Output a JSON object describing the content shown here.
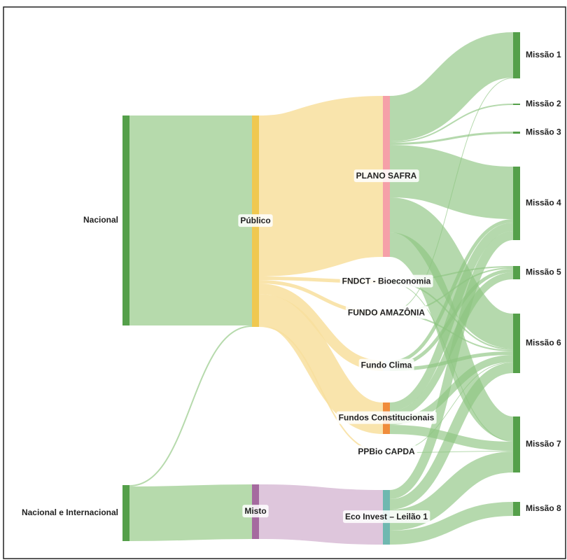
{
  "chart_data": {
    "type": "sankey",
    "nodes": [
      {
        "label": "Nacional",
        "color": "#55a04a",
        "link_color": "#a9d39e"
      },
      {
        "label": "Nacional e Internacional",
        "color": "#55a04a",
        "link_color": "#a9d39e"
      },
      {
        "label": "Público",
        "color": "#f0c850",
        "link_color": "#f8df9e"
      },
      {
        "label": "Misto",
        "color": "#a56a9f",
        "link_color": "#d8bcd6"
      },
      {
        "label": "PLANO SAFRA",
        "color": "#f5a0a8",
        "link_color": "#8ec581"
      },
      {
        "label": "FNDCT - Bioeconomia",
        "color": "#f3e0e0",
        "link_color": "#8ec581"
      },
      {
        "label": "FUNDO AMAZÔNIA",
        "color": "#f3e0e0",
        "link_color": "#8ec581"
      },
      {
        "label": "Fundo Clima",
        "color": "#d8e6f2",
        "link_color": "#8ec581"
      },
      {
        "label": "Fundos Constitucionais",
        "color": "#f08c3c",
        "link_color": "#8ec581"
      },
      {
        "label": "PPBio CAPDA",
        "color": "#e6efd8",
        "link_color": "#8ec581"
      },
      {
        "label": "Eco Invest – Leilão 1",
        "color": "#6fb8b0",
        "link_color": "#8ec581"
      },
      {
        "label": "Missão 1",
        "color": "#55a04a"
      },
      {
        "label": "Missão 2",
        "color": "#55a04a"
      },
      {
        "label": "Missão 3",
        "color": "#55a04a"
      },
      {
        "label": "Missão 4",
        "color": "#55a04a"
      },
      {
        "label": "Missão 5",
        "color": "#55a04a"
      },
      {
        "label": "Missão 6",
        "color": "#55a04a"
      },
      {
        "label": "Missão 7",
        "color": "#55a04a"
      },
      {
        "label": "Missão 8",
        "color": "#55a04a"
      }
    ],
    "links": [
      {
        "source": 0,
        "target": 2,
        "value": 300
      },
      {
        "source": 1,
        "target": 2,
        "value": 2
      },
      {
        "source": 1,
        "target": 3,
        "value": 78
      },
      {
        "source": 2,
        "target": 4,
        "value": 230
      },
      {
        "source": 2,
        "target": 5,
        "value": 5
      },
      {
        "source": 2,
        "target": 6,
        "value": 5
      },
      {
        "source": 2,
        "target": 7,
        "value": 15
      },
      {
        "source": 2,
        "target": 8,
        "value": 45
      },
      {
        "source": 2,
        "target": 9,
        "value": 2
      },
      {
        "source": 3,
        "target": 10,
        "value": 78
      },
      {
        "source": 4,
        "target": 11,
        "value": 65
      },
      {
        "source": 4,
        "target": 12,
        "value": 2
      },
      {
        "source": 4,
        "target": 13,
        "value": 3
      },
      {
        "source": 4,
        "target": 14,
        "value": 75
      },
      {
        "source": 4,
        "target": 16,
        "value": 50
      },
      {
        "source": 4,
        "target": 17,
        "value": 35
      },
      {
        "source": 5,
        "target": 15,
        "value": 2
      },
      {
        "source": 5,
        "target": 16,
        "value": 2
      },
      {
        "source": 5,
        "target": 17,
        "value": 1
      },
      {
        "source": 6,
        "target": 11,
        "value": 1
      },
      {
        "source": 6,
        "target": 15,
        "value": 2
      },
      {
        "source": 6,
        "target": 16,
        "value": 2
      },
      {
        "source": 7,
        "target": 14,
        "value": 5
      },
      {
        "source": 7,
        "target": 15,
        "value": 5
      },
      {
        "source": 7,
        "target": 16,
        "value": 5
      },
      {
        "source": 8,
        "target": 14,
        "value": 12
      },
      {
        "source": 8,
        "target": 15,
        "value": 10
      },
      {
        "source": 8,
        "target": 16,
        "value": 10
      },
      {
        "source": 8,
        "target": 17,
        "value": 13
      },
      {
        "source": 9,
        "target": 16,
        "value": 1
      },
      {
        "source": 9,
        "target": 17,
        "value": 1
      },
      {
        "source": 10,
        "target": 14,
        "value": 13
      },
      {
        "source": 10,
        "target": 16,
        "value": 15
      },
      {
        "source": 10,
        "target": 17,
        "value": 30
      },
      {
        "source": 10,
        "target": 18,
        "value": 20
      }
    ]
  }
}
